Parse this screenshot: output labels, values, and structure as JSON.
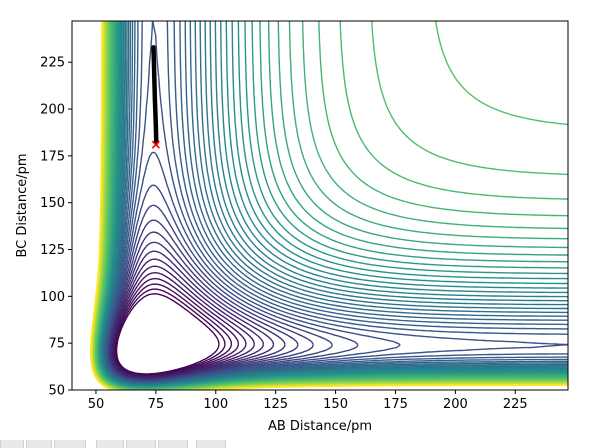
{
  "chart_data": {
    "type": "contour",
    "title": "",
    "xlabel": "AB Distance/pm",
    "ylabel": "BC Distance/pm",
    "xlim": [
      40,
      247
    ],
    "ylim": [
      50,
      247
    ],
    "xticks": [
      50,
      75,
      100,
      125,
      150,
      175,
      200,
      225
    ],
    "yticks": [
      50,
      75,
      100,
      125,
      150,
      175,
      200,
      225
    ],
    "colormap": [
      "#440154",
      "#3b528b",
      "#21918c",
      "#5ec962",
      "#fde725"
    ],
    "grid": false,
    "legend": "none",
    "trajectory": {
      "color": "#000000",
      "x": [
        74,
        74.2,
        74.4,
        74.6,
        74.8,
        75,
        75.2
      ],
      "y": [
        233,
        225,
        215,
        205,
        198,
        190,
        182
      ]
    },
    "marker": {
      "symbol": "x",
      "color": "#ff0000",
      "x": 75,
      "y": 181
    }
  }
}
